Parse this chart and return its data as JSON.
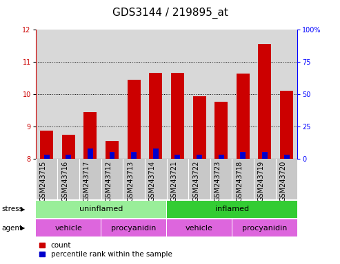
{
  "title": "GDS3144 / 219895_at",
  "samples": [
    "GSM243715",
    "GSM243716",
    "GSM243717",
    "GSM243712",
    "GSM243713",
    "GSM243714",
    "GSM243721",
    "GSM243722",
    "GSM243723",
    "GSM243718",
    "GSM243719",
    "GSM243720"
  ],
  "counts": [
    8.87,
    8.74,
    9.45,
    8.55,
    10.45,
    10.65,
    10.65,
    9.93,
    9.75,
    10.63,
    11.55,
    10.1
  ],
  "percentiles": [
    3,
    3,
    8,
    5,
    5,
    8,
    3,
    3,
    3,
    5,
    5,
    3
  ],
  "ymin": 8,
  "ymax": 12,
  "yticks": [
    8,
    9,
    10,
    11,
    12
  ],
  "y2ticks": [
    0,
    25,
    50,
    75,
    100
  ],
  "y2labels": [
    "0",
    "25",
    "50",
    "75",
    "100%"
  ],
  "bar_color_red": "#cc0000",
  "bar_color_blue": "#0000cc",
  "stress_labels": [
    {
      "text": "uninflamed",
      "start": 0,
      "end": 6,
      "color": "#99ee99"
    },
    {
      "text": "inflamed",
      "start": 6,
      "end": 12,
      "color": "#33cc33"
    }
  ],
  "agent_groups": [
    {
      "text": "vehicle",
      "start": 0,
      "end": 3
    },
    {
      "text": "procyanidin",
      "start": 3,
      "end": 6
    },
    {
      "text": "vehicle",
      "start": 6,
      "end": 9
    },
    {
      "text": "procyanidin",
      "start": 9,
      "end": 12
    }
  ],
  "agent_color": "#dd66dd",
  "legend_items": [
    {
      "color": "#cc0000",
      "label": "count"
    },
    {
      "color": "#0000cc",
      "label": "percentile rank within the sample"
    }
  ],
  "title_fontsize": 11,
  "tick_fontsize": 7,
  "label_fontsize": 8,
  "bg_color": "#d8d8d8",
  "xtick_bg": "#c8c8c8"
}
